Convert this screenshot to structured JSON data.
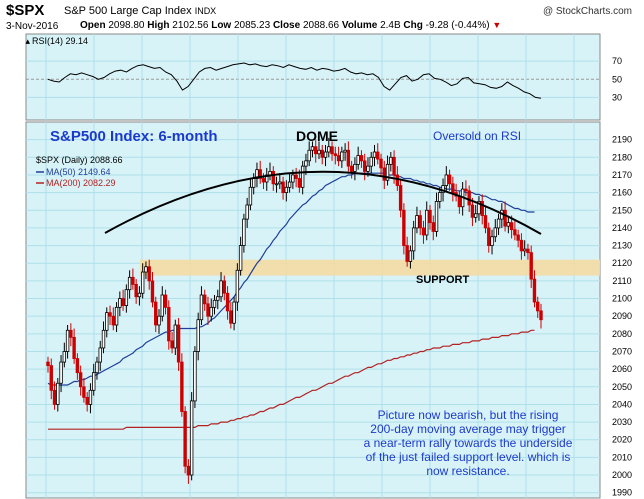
{
  "header": {
    "symbol": "$SPX",
    "name": "S&P 500 Large Cap Index",
    "exchange": "INDX",
    "brand": "@ StockCharts.com",
    "date": "3-Nov-2016",
    "open_label": "Open",
    "open": "2098.80",
    "high_label": "High",
    "high": "2102.56",
    "low_label": "Low",
    "low": "2085.23",
    "close_label": "Close",
    "close": "2088.66",
    "volume_label": "Volume",
    "volume": "2.4B",
    "chg_label": "Chg",
    "chg": "-9.28 (-0.44%)",
    "chg_color": "#cc0000"
  },
  "rsi_panel": {
    "label": "RSI(14) 29.14",
    "ticks": [
      "70",
      "50",
      "30"
    ],
    "bg_color": "#d8f3f8"
  },
  "annotations": {
    "title": "S&P500 Index: 6-month",
    "dome": "DOME",
    "oversold": "Oversold on RSI",
    "support": "SUPPORT",
    "note_lines": [
      "Picture now bearish, but the rising",
      "200-day moving average may trigger",
      "a near-term rally towards the underside",
      "of the just failed support level. which is",
      "now resistance."
    ],
    "title_color": "#1a3acc"
  },
  "legend": {
    "price": "$SPX (Daily) 2088.66",
    "ma50": "MA(50) 2149.64",
    "ma200": "MA(200) 2082.29",
    "ma50_color": "#1f3f99",
    "ma200_color": "#b22222"
  },
  "chart_data": {
    "type": "candlestick",
    "title": "S&P500 Index: 6-month",
    "y_ticks": [
      1990,
      2000,
      2010,
      2020,
      2030,
      2040,
      2050,
      2060,
      2070,
      2080,
      2090,
      2100,
      2110,
      2120,
      2130,
      2140,
      2150,
      2160,
      2170,
      2180,
      2190
    ],
    "ylim": [
      1987,
      2200
    ],
    "support_band": [
      2113,
      2122
    ],
    "close": [
      2062,
      2048,
      2040,
      2052,
      2064,
      2070,
      2082,
      2078,
      2066,
      2058,
      2050,
      2044,
      2040,
      2048,
      2058,
      2064,
      2072,
      2082,
      2092,
      2090,
      2085,
      2095,
      2100,
      2096,
      2105,
      2112,
      2108,
      2101,
      2103,
      2115,
      2118,
      2110,
      2098,
      2085,
      2090,
      2102,
      2095,
      2076,
      2072,
      2085,
      2064,
      2036,
      2005,
      2000,
      2042,
      2070,
      2088,
      2102,
      2097,
      2090,
      2095,
      2099,
      2101,
      2110,
      2103,
      2093,
      2086,
      2098,
      2116,
      2130,
      2145,
      2153,
      2163,
      2168,
      2173,
      2168,
      2166,
      2170,
      2172,
      2165,
      2165,
      2166,
      2160,
      2163,
      2166,
      2170,
      2168,
      2163,
      2175,
      2178,
      2184,
      2186,
      2182,
      2184,
      2180,
      2183,
      2186,
      2182,
      2181,
      2178,
      2183,
      2184,
      2175,
      2172,
      2176,
      2181,
      2178,
      2172,
      2175,
      2180,
      2183,
      2179,
      2174,
      2167,
      2176,
      2180,
      2170,
      2164,
      2150,
      2130,
      2121,
      2127,
      2140,
      2147,
      2140,
      2136,
      2150,
      2143,
      2138,
      2155,
      2160,
      2164,
      2170,
      2165,
      2160,
      2158,
      2152,
      2162,
      2161,
      2153,
      2146,
      2148,
      2155,
      2147,
      2140,
      2130,
      2135,
      2140,
      2145,
      2150,
      2141,
      2143,
      2139,
      2136,
      2133,
      2127,
      2128,
      2126,
      2111,
      2098,
      2093,
      2088
    ],
    "ma50": [
      2052,
      2051,
      2051,
      2051,
      2051,
      2051,
      2051,
      2052,
      2053,
      2053,
      2054,
      2054,
      2055,
      2056,
      2056,
      2057,
      2058,
      2059,
      2060,
      2061,
      2062,
      2063,
      2064,
      2066,
      2067,
      2068,
      2069,
      2071,
      2072,
      2073,
      2075,
      2076,
      2077,
      2078,
      2079,
      2080,
      2081,
      2081,
      2082,
      2082,
      2083,
      2083,
      2083,
      2083,
      2083,
      2083,
      2084,
      2084,
      2085,
      2086,
      2088,
      2089,
      2091,
      2093,
      2095,
      2097,
      2099,
      2101,
      2104,
      2106,
      2109,
      2111,
      2114,
      2117,
      2120,
      2122,
      2125,
      2128,
      2130,
      2133,
      2135,
      2138,
      2140,
      2142,
      2145,
      2147,
      2149,
      2151,
      2153,
      2154,
      2156,
      2158,
      2159,
      2161,
      2162,
      2164,
      2165,
      2166,
      2167,
      2168,
      2169,
      2169,
      2170,
      2170,
      2171,
      2171,
      2171,
      2171,
      2171,
      2171,
      2171,
      2171,
      2171,
      2171,
      2170,
      2170,
      2170,
      2169,
      2169,
      2168,
      2168,
      2168,
      2167,
      2167,
      2166,
      2166,
      2165,
      2165,
      2164,
      2164,
      2163,
      2163,
      2162,
      2162,
      2162,
      2161,
      2161,
      2161,
      2160,
      2160,
      2160,
      2159,
      2159,
      2158,
      2158,
      2157,
      2156,
      2156,
      2155,
      2155,
      2154,
      2153,
      2152,
      2151,
      2151,
      2150,
      2150,
      2149,
      2149,
      2149
    ],
    "ma200": [
      2026,
      2026,
      2026,
      2026,
      2026,
      2026,
      2026,
      2026,
      2026,
      2026,
      2026,
      2026,
      2026,
      2026,
      2026,
      2026,
      2026,
      2026,
      2026,
      2026,
      2026,
      2026,
      2026,
      2026,
      2027,
      2027,
      2027,
      2027,
      2027,
      2027,
      2027,
      2027,
      2027,
      2027,
      2027,
      2027,
      2027,
      2027,
      2027,
      2027,
      2027,
      2027,
      2027,
      2027,
      2027,
      2027,
      2028,
      2028,
      2028,
      2028,
      2029,
      2029,
      2029,
      2030,
      2030,
      2030,
      2031,
      2031,
      2032,
      2032,
      2033,
      2033,
      2034,
      2034,
      2035,
      2036,
      2036,
      2037,
      2038,
      2038,
      2039,
      2040,
      2040,
      2041,
      2042,
      2043,
      2044,
      2044,
      2045,
      2046,
      2047,
      2048,
      2048,
      2049,
      2050,
      2051,
      2052,
      2052,
      2053,
      2054,
      2055,
      2056,
      2056,
      2057,
      2058,
      2058,
      2059,
      2060,
      2061,
      2061,
      2062,
      2063,
      2063,
      2064,
      2065,
      2065,
      2066,
      2066,
      2067,
      2067,
      2068,
      2068,
      2069,
      2069,
      2070,
      2070,
      2071,
      2071,
      2072,
      2072,
      2072,
      2073,
      2073,
      2073,
      2074,
      2074,
      2074,
      2075,
      2075,
      2075,
      2076,
      2076,
      2076,
      2077,
      2077,
      2077,
      2078,
      2078,
      2078,
      2079,
      2079,
      2079,
      2080,
      2080,
      2080,
      2081,
      2081,
      2081,
      2082,
      2082
    ],
    "rsi": [
      50,
      48,
      47,
      52,
      56,
      55,
      57,
      55,
      53,
      50,
      52,
      56,
      59,
      60,
      58,
      62,
      65,
      66,
      64,
      62,
      63,
      58,
      55,
      48,
      38,
      42,
      50,
      58,
      62,
      63,
      60,
      62,
      64,
      66,
      67,
      68,
      66,
      67,
      65,
      64,
      66,
      65,
      63,
      66,
      64,
      62,
      61,
      63,
      60,
      62,
      61,
      59,
      60,
      62,
      58,
      56,
      57,
      55,
      56,
      52,
      42,
      38,
      45,
      52,
      54,
      48,
      50,
      55,
      56,
      51,
      50,
      47,
      43,
      45,
      51,
      52,
      46,
      45,
      44,
      41,
      40,
      42,
      47,
      43,
      40,
      36,
      34,
      30,
      29
    ]
  }
}
